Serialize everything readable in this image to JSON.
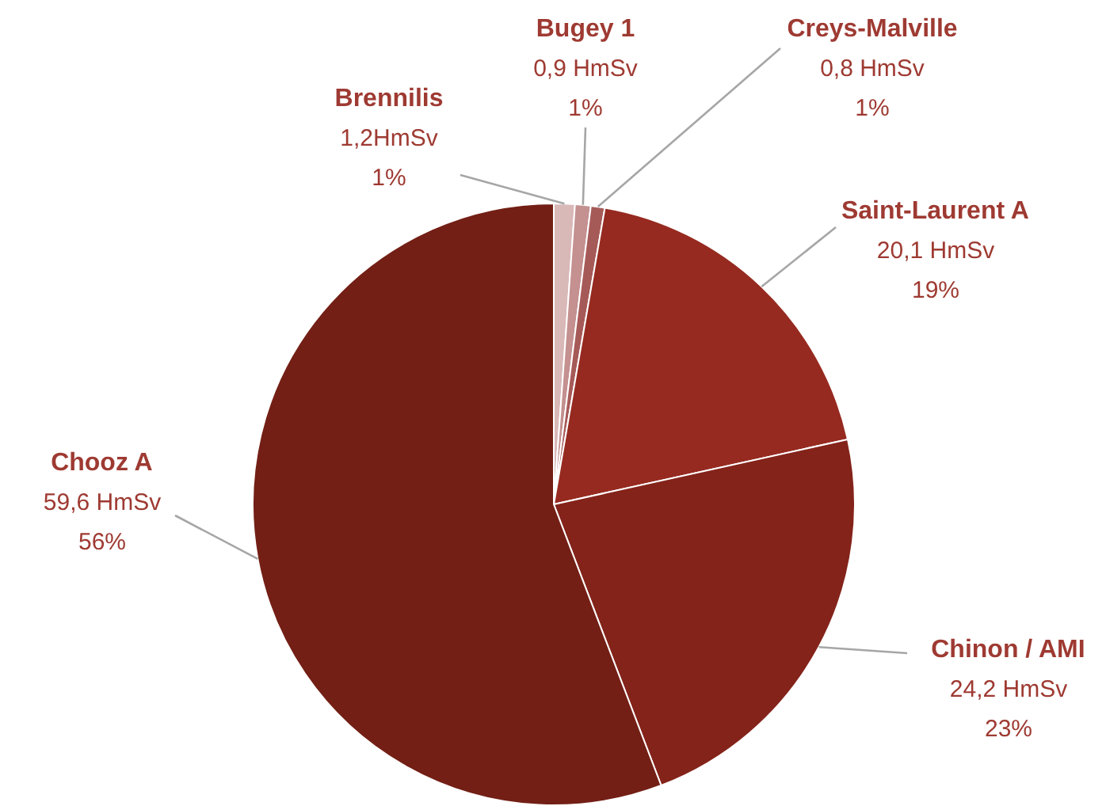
{
  "chart_data": {
    "type": "pie",
    "categories": [
      "Brennilis",
      "Bugey 1",
      "Creys-Malville",
      "Saint-Laurent A",
      "Chinon / AMI",
      "Chooz A"
    ],
    "values": [
      1.2,
      0.9,
      0.8,
      20.1,
      24.2,
      59.6
    ],
    "value_labels": [
      "1,2HmSv\n1%",
      "0,9 HmSv\n1%",
      "0,8 HmSv\n1%",
      "20,1 HmSv\n19%",
      "24,2 HmSv\n23%",
      "59,6 HmSv\n56%"
    ],
    "colors": [
      "#d9b8b8",
      "#c49090",
      "#a65a58",
      "#962a20",
      "#84231a",
      "#731f15"
    ]
  }
}
